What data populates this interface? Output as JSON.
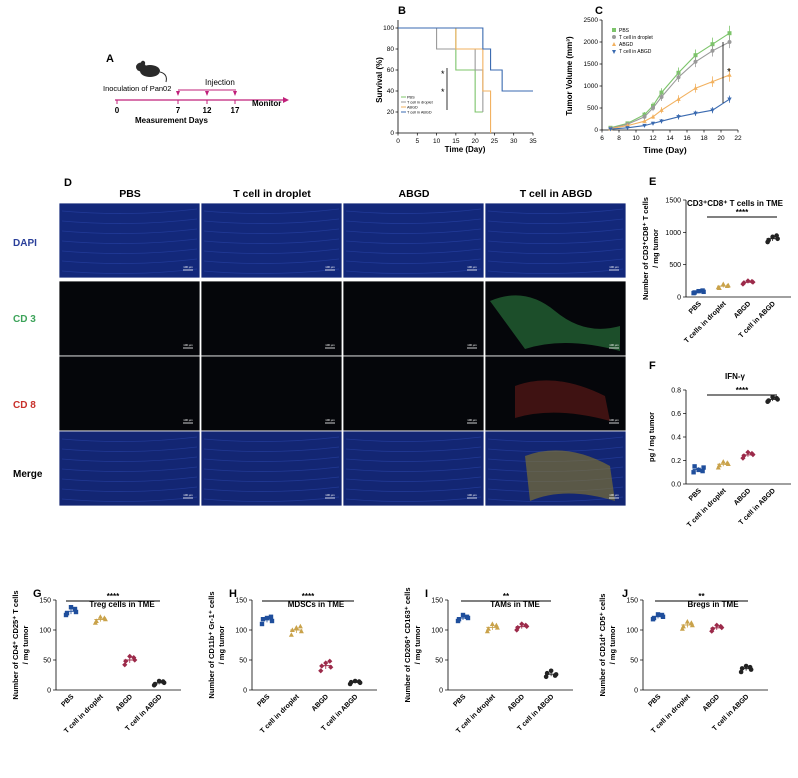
{
  "panels": {
    "A": "A",
    "B": "B",
    "C": "C",
    "D": "D",
    "E": "E",
    "F": "F",
    "G": "G",
    "H": "H",
    "I": "I",
    "J": "J"
  },
  "colors": {
    "pbs": "#1f4e9c",
    "droplet": "#c9a24a",
    "abgd": "#9c2a4a",
    "abgd_tcell": "#222222",
    "green": "#7cc46a",
    "grey": "#9a9a9a",
    "orange": "#f2b15f",
    "navy": "#3a6ab0",
    "dapi": "#2a3f9a",
    "cd3": "#3da35a",
    "cd8": "#c8302a"
  },
  "schematic": {
    "animal_icon": "mouse-icon",
    "inoculation": "Inoculation of Pan02",
    "injection": "Injection",
    "monitor": "Monitor",
    "measurement": "Measurement  Days",
    "days": [
      "0",
      "7",
      "12",
      "17"
    ]
  },
  "survival": {
    "title": "",
    "xlabel": "Time (Day)",
    "ylabel": "Survival (%)",
    "xticks": [
      "0",
      "5",
      "10",
      "15",
      "20",
      "25",
      "30",
      "35"
    ],
    "yticks": [
      "0",
      "20",
      "40",
      "60",
      "80",
      "100"
    ],
    "legend": [
      "PBS",
      "T cell in droplet",
      "ABGD",
      "T cell in ABGD"
    ],
    "sig": [
      "*",
      "*"
    ]
  },
  "volume": {
    "xlabel": "Time (Day)",
    "ylabel": "Tumor Volume (mm³)",
    "xticks": [
      "6",
      "8",
      "10",
      "12",
      "14",
      "16",
      "18",
      "20",
      "22"
    ],
    "yticks": [
      "0",
      "500",
      "1000",
      "1500",
      "2000",
      "2500"
    ],
    "legend": [
      "PBS",
      "T cell in droplet",
      "ABGD",
      "T cell in ABGD"
    ],
    "sig": "*"
  },
  "imaging": {
    "columns": [
      "PBS",
      "T cell in droplet",
      "ABGD",
      "T cell in ABGD"
    ],
    "rows": [
      "DAPI",
      "CD 3",
      "CD 8",
      "Merge"
    ],
    "scale_bar": "100 μm"
  },
  "panelE": {
    "title": "CD3⁺CD8⁺ T cells in TME",
    "ylabel": [
      "Number of CD3⁺CD8⁺ T cells",
      "/ mg tumor"
    ],
    "yticks": [
      "0",
      "500",
      "1000",
      "1500"
    ],
    "sig": "****"
  },
  "panelF": {
    "title": "IFN-γ",
    "ylabel": [
      "pg / mg tumor"
    ],
    "yticks": [
      "0.0",
      "0.2",
      "0.4",
      "0.6",
      "0.8"
    ],
    "sig": "****"
  },
  "panelG": {
    "title": "Treg cells in TME",
    "ylabel": [
      "Number of CD4⁺ CD25⁺ T cells",
      "/ mg tumor"
    ],
    "yticks": [
      "0",
      "50",
      "100",
      "150"
    ],
    "sig": "****"
  },
  "panelH": {
    "title": "MDSCs in TME",
    "ylabel": [
      "Number of CD11b⁺ Gr-1⁺ cells",
      "/ mg tumor"
    ],
    "yticks": [
      "0",
      "50",
      "100",
      "150"
    ],
    "sig": "****"
  },
  "panelI": {
    "title": "TAMs in TME",
    "ylabel": [
      "Number of CD206⁺ CD163⁺ cells",
      "/ mg tumor"
    ],
    "yticks": [
      "0",
      "50",
      "100",
      "150"
    ],
    "sig": "**"
  },
  "panelJ": {
    "title": "Bregs in TME",
    "ylabel": [
      "Number of CD1d⁺ CD5⁺ cells",
      "/ mg tumor"
    ],
    "yticks": [
      "0",
      "50",
      "100",
      "150"
    ],
    "sig": "**"
  },
  "chart_data": [
    {
      "type": "line",
      "id": "survival",
      "xlabel": "Time (Day)",
      "ylabel": "Survival (%)",
      "xlim": [
        0,
        35
      ],
      "ylim": [
        0,
        100
      ],
      "series": [
        {
          "name": "PBS",
          "x": [
            0,
            15,
            15,
            20,
            20,
            22
          ],
          "y": [
            100,
            100,
            60,
            60,
            20,
            20
          ]
        },
        {
          "name": "T cell in droplet",
          "x": [
            0,
            10,
            10,
            20,
            20,
            22,
            22
          ],
          "y": [
            100,
            100,
            80,
            80,
            60,
            60,
            20
          ]
        },
        {
          "name": "ABGD",
          "x": [
            0,
            15,
            15,
            22,
            22,
            24,
            24
          ],
          "y": [
            100,
            100,
            80,
            80,
            40,
            40,
            0
          ]
        },
        {
          "name": "T cell in ABGD",
          "x": [
            0,
            22,
            22,
            24,
            24,
            27,
            27,
            35
          ],
          "y": [
            100,
            100,
            80,
            80,
            60,
            60,
            40,
            40
          ]
        }
      ]
    },
    {
      "type": "line",
      "id": "volume",
      "xlabel": "Time (Day)",
      "ylabel": "Tumor Volume (mm³)",
      "xlim": [
        6,
        22
      ],
      "ylim": [
        0,
        2500
      ],
      "series": [
        {
          "name": "PBS",
          "x": [
            7,
            9,
            11,
            12,
            13,
            15,
            17,
            19,
            21
          ],
          "y": [
            50,
            150,
            350,
            550,
            850,
            1300,
            1700,
            1950,
            2200
          ],
          "err": [
            30,
            40,
            60,
            80,
            100,
            120,
            130,
            150,
            170
          ]
        },
        {
          "name": "T cell in droplet",
          "x": [
            7,
            9,
            11,
            12,
            13,
            15,
            17,
            19,
            21
          ],
          "y": [
            40,
            130,
            300,
            500,
            750,
            1200,
            1550,
            1800,
            2000
          ],
          "err": [
            30,
            40,
            60,
            70,
            90,
            110,
            120,
            130,
            140
          ]
        },
        {
          "name": "ABGD",
          "x": [
            7,
            9,
            11,
            12,
            13,
            15,
            17,
            19,
            21
          ],
          "y": [
            30,
            100,
            200,
            300,
            450,
            700,
            950,
            1100,
            1250
          ],
          "err": [
            20,
            30,
            40,
            50,
            70,
            90,
            100,
            120,
            150
          ]
        },
        {
          "name": "T cell in ABGD",
          "x": [
            7,
            9,
            11,
            12,
            13,
            15,
            17,
            19,
            21
          ],
          "y": [
            20,
            50,
            100,
            150,
            200,
            300,
            380,
            450,
            700
          ],
          "err": [
            10,
            20,
            30,
            40,
            50,
            60,
            60,
            70,
            80
          ]
        }
      ]
    },
    {
      "type": "scatter",
      "id": "panelE",
      "categories": [
        "PBS",
        "T cells in droplet",
        "ABGD",
        "T cell in ABGD"
      ],
      "ylim": [
        0,
        1500
      ],
      "values": [
        [
          60,
          80,
          90,
          70,
          100
        ],
        [
          150,
          180,
          200,
          140,
          170
        ],
        [
          200,
          230,
          250,
          220,
          240
        ],
        [
          850,
          900,
          930,
          880,
          950
        ]
      ]
    },
    {
      "type": "scatter",
      "id": "panelF",
      "categories": [
        "PBS",
        "T cell in droplet",
        "ABGD",
        "T cell in ABGD"
      ],
      "ylim": [
        0,
        0.8
      ],
      "values": [
        [
          0.1,
          0.14,
          0.12,
          0.15,
          0.11
        ],
        [
          0.14,
          0.17,
          0.19,
          0.16,
          0.18
        ],
        [
          0.22,
          0.25,
          0.27,
          0.24,
          0.26
        ],
        [
          0.7,
          0.72,
          0.74,
          0.71,
          0.73
        ]
      ]
    },
    {
      "type": "scatter",
      "id": "panelG",
      "categories": [
        "PBS",
        "T cell in droplet",
        "ABGD",
        "T cell in ABGD"
      ],
      "ylim": [
        0,
        150
      ],
      "values": [
        [
          125,
          130,
          138,
          128,
          135
        ],
        [
          112,
          118,
          122,
          115,
          120
        ],
        [
          42,
          50,
          56,
          48,
          54
        ],
        [
          8,
          12,
          15,
          10,
          14
        ]
      ]
    },
    {
      "type": "scatter",
      "id": "panelH",
      "categories": [
        "PBS",
        "T cell in droplet",
        "ABGD",
        "T cell in ABGD"
      ],
      "ylim": [
        0,
        150
      ],
      "values": [
        [
          110,
          115,
          120,
          118,
          122
        ],
        [
          92,
          98,
          104,
          100,
          106
        ],
        [
          32,
          38,
          45,
          40,
          48
        ],
        [
          10,
          12,
          15,
          13,
          14
        ]
      ]
    },
    {
      "type": "scatter",
      "id": "panelI",
      "categories": [
        "PBS",
        "T cell in droplet",
        "ABGD",
        "T cell in ABGD"
      ],
      "ylim": [
        0,
        150
      ],
      "values": [
        [
          115,
          120,
          125,
          118,
          122
        ],
        [
          98,
          104,
          110,
          102,
          108
        ],
        [
          100,
          106,
          110,
          104,
          108
        ],
        [
          22,
          26,
          32,
          28,
          24
        ]
      ]
    },
    {
      "type": "scatter",
      "id": "panelJ",
      "categories": [
        "PBS",
        "T cell in droplet",
        "ABGD",
        "T cell in ABGD"
      ],
      "ylim": [
        0,
        150
      ],
      "values": [
        [
          118,
          122,
          126,
          120,
          125
        ],
        [
          102,
          108,
          114,
          106,
          112
        ],
        [
          98,
          104,
          108,
          102,
          106
        ],
        [
          30,
          34,
          40,
          36,
          38
        ]
      ]
    }
  ]
}
